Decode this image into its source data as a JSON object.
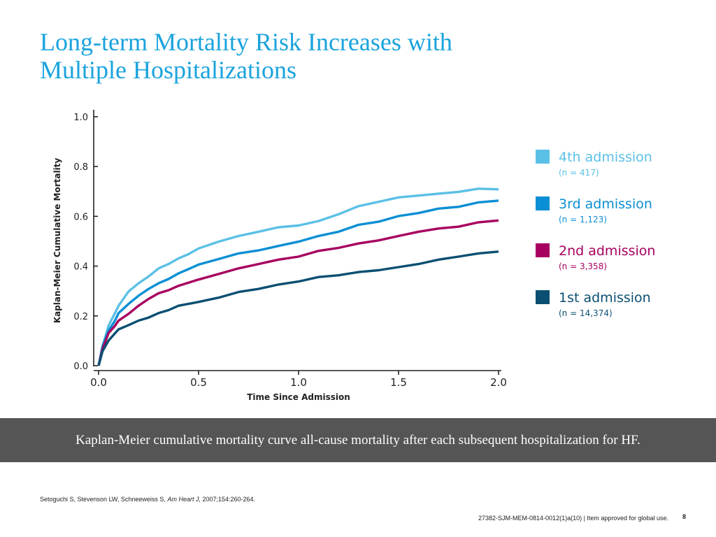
{
  "slide": {
    "title_line1": "Long-term Mortality Risk Increases with",
    "title_line2": "Multiple Hospitalizations",
    "caption": "Kaplan-Meier cumulative mortality curve all-cause mortality after each subsequent hospitalization for HF.",
    "citation_authors": "Setoguchi S, Stevenson LW, Schneeweiss S, ",
    "citation_journal": "Am Heart J,",
    "citation_rest": " 2007;154:260-264.",
    "footer_code": "27382-SJM-MEM-0814-0012(1)a(10) | Item approved for global use.",
    "page_number": "8"
  },
  "colors": {
    "title": "#1aa3dd",
    "caption_bar": "#555555"
  },
  "chart_data": {
    "type": "line",
    "title": "",
    "xlabel": "Time Since Admission",
    "ylabel": "Kaplan-Meier Cumulative Mortality",
    "xlim": [
      0,
      2
    ],
    "ylim": [
      0,
      1
    ],
    "x_ticks": [
      0,
      0.5,
      1,
      1.5,
      2
    ],
    "x_tick_labels": [
      "0.0",
      "0.5",
      "1.0",
      "1.5",
      "2.0"
    ],
    "y_ticks": [
      0,
      0.2,
      0.4,
      0.6,
      0.8,
      1
    ],
    "y_tick_labels": [
      "0.0",
      "0.2",
      "0.4",
      "0.6",
      "0.8",
      "1.0"
    ],
    "grid": false,
    "legend_position": "right",
    "series": [
      {
        "name": "4th admission",
        "n_label": "(n = 417)",
        "color": "#5bc0e6",
        "x": [
          0,
          0.02,
          0.05,
          0.08,
          0.1,
          0.15,
          0.2,
          0.25,
          0.3,
          0.35,
          0.4,
          0.45,
          0.5,
          0.6,
          0.7,
          0.8,
          0.9,
          1.0,
          1.1,
          1.2,
          1.3,
          1.4,
          1.5,
          1.6,
          1.7,
          1.8,
          1.9,
          2.0
        ],
        "y": [
          0,
          0.08,
          0.16,
          0.21,
          0.24,
          0.3,
          0.33,
          0.36,
          0.39,
          0.41,
          0.43,
          0.45,
          0.47,
          0.5,
          0.52,
          0.54,
          0.555,
          0.565,
          0.58,
          0.61,
          0.64,
          0.66,
          0.675,
          0.685,
          0.69,
          0.7,
          0.71,
          0.71
        ]
      },
      {
        "name": "3rd admission",
        "n_label": "(n = 1,123)",
        "color": "#0a8fd4",
        "x": [
          0,
          0.02,
          0.05,
          0.08,
          0.1,
          0.15,
          0.2,
          0.25,
          0.3,
          0.35,
          0.4,
          0.45,
          0.5,
          0.6,
          0.7,
          0.8,
          0.9,
          1.0,
          1.1,
          1.2,
          1.3,
          1.4,
          1.5,
          1.6,
          1.7,
          1.8,
          1.9,
          2.0
        ],
        "y": [
          0,
          0.08,
          0.14,
          0.18,
          0.21,
          0.25,
          0.28,
          0.31,
          0.33,
          0.35,
          0.37,
          0.39,
          0.405,
          0.43,
          0.45,
          0.465,
          0.48,
          0.5,
          0.52,
          0.54,
          0.565,
          0.58,
          0.6,
          0.615,
          0.63,
          0.64,
          0.655,
          0.665
        ]
      },
      {
        "name": "2nd admission",
        "n_label": "(n = 3,358)",
        "color": "#a7005f",
        "x": [
          0,
          0.02,
          0.05,
          0.08,
          0.1,
          0.15,
          0.2,
          0.25,
          0.3,
          0.35,
          0.4,
          0.45,
          0.5,
          0.6,
          0.7,
          0.8,
          0.9,
          1.0,
          1.1,
          1.2,
          1.3,
          1.4,
          1.5,
          1.6,
          1.7,
          1.8,
          1.9,
          2.0
        ],
        "y": [
          0,
          0.07,
          0.13,
          0.16,
          0.18,
          0.21,
          0.24,
          0.27,
          0.29,
          0.305,
          0.32,
          0.335,
          0.345,
          0.37,
          0.39,
          0.41,
          0.425,
          0.44,
          0.46,
          0.475,
          0.49,
          0.505,
          0.52,
          0.54,
          0.55,
          0.56,
          0.575,
          0.585
        ]
      },
      {
        "name": "1st admission",
        "n_label": "(n = 14,374)",
        "color": "#0b4f72",
        "x": [
          0,
          0.02,
          0.05,
          0.08,
          0.1,
          0.15,
          0.2,
          0.25,
          0.3,
          0.35,
          0.4,
          0.45,
          0.5,
          0.6,
          0.7,
          0.8,
          0.9,
          1.0,
          1.1,
          1.2,
          1.3,
          1.4,
          1.5,
          1.6,
          1.7,
          1.8,
          1.9,
          2.0
        ],
        "y": [
          0,
          0.06,
          0.1,
          0.13,
          0.145,
          0.165,
          0.18,
          0.195,
          0.21,
          0.225,
          0.24,
          0.25,
          0.255,
          0.275,
          0.295,
          0.31,
          0.325,
          0.34,
          0.355,
          0.365,
          0.375,
          0.385,
          0.395,
          0.41,
          0.425,
          0.44,
          0.45,
          0.46
        ]
      }
    ]
  }
}
